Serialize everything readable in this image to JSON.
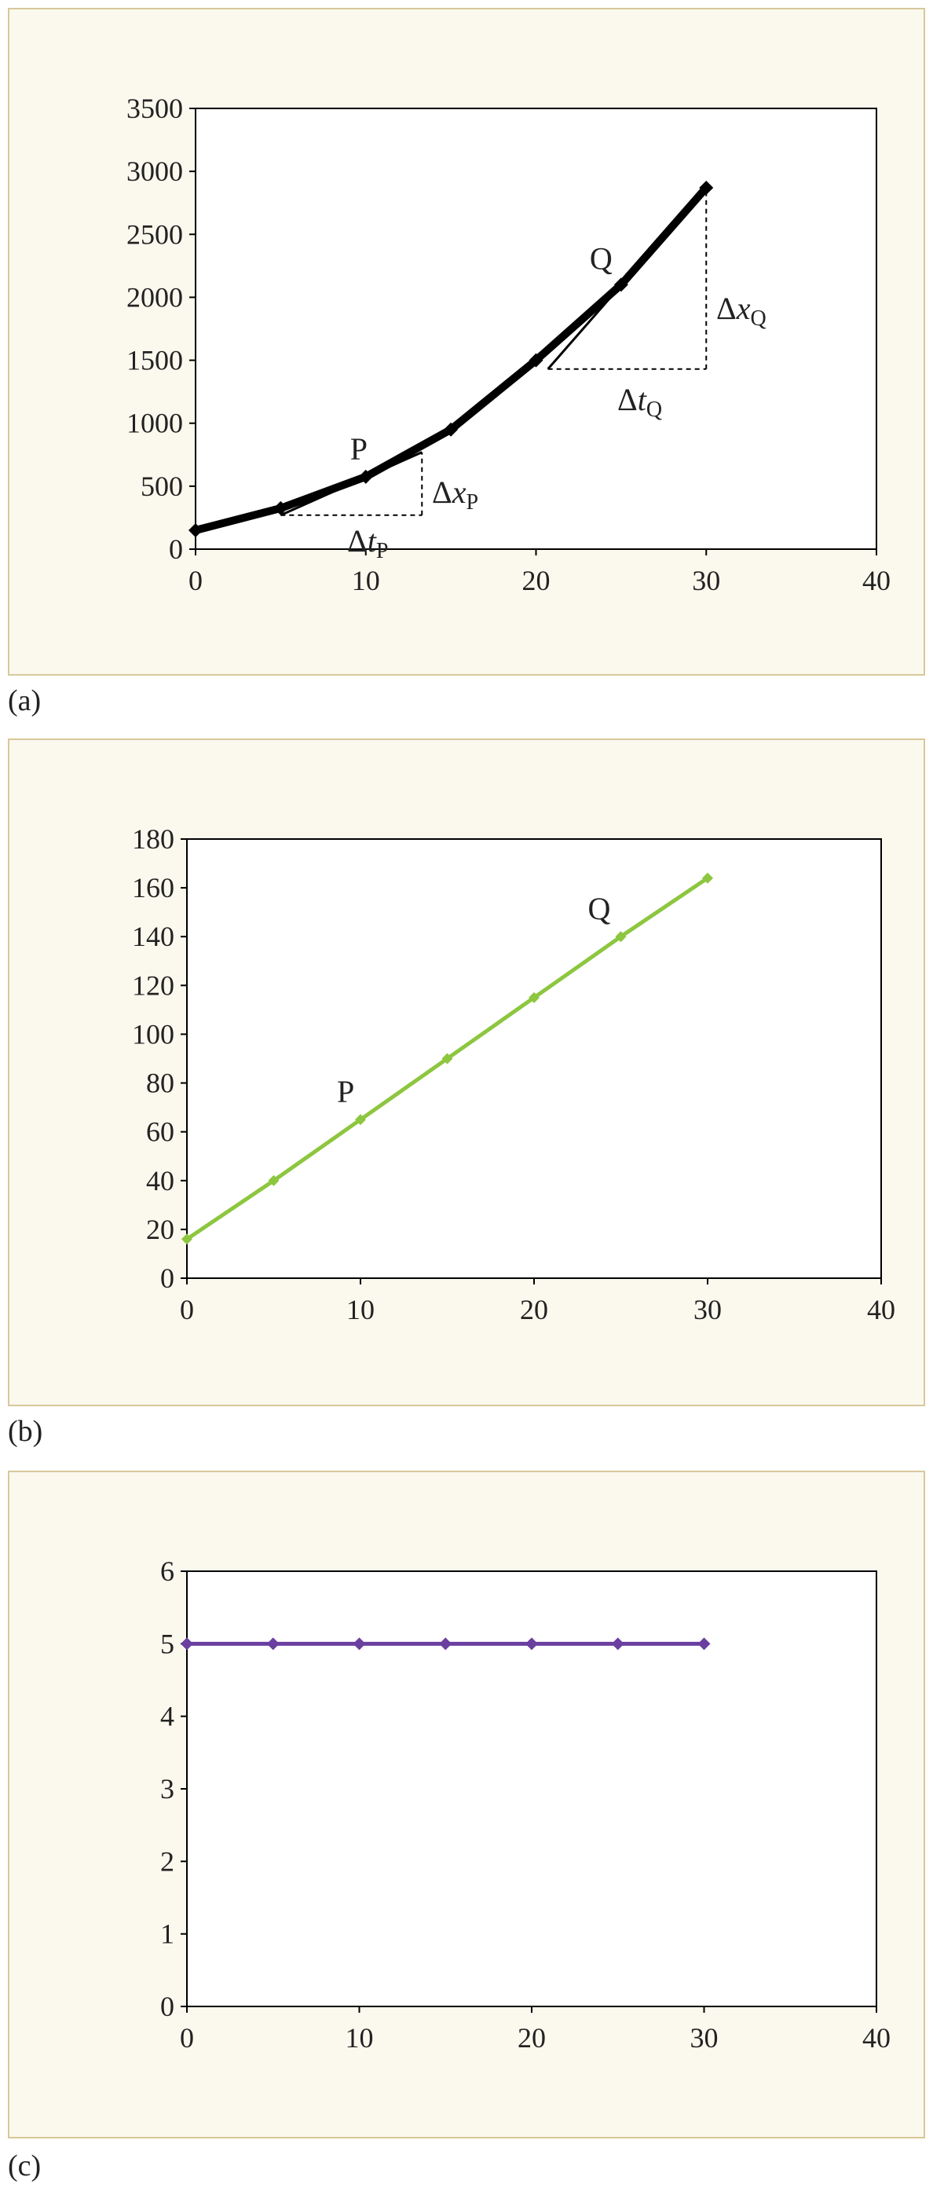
{
  "chart_data": [
    {
      "type": "line",
      "panel_label": "(a)",
      "x": [
        0,
        5,
        10,
        15,
        20,
        25,
        30
      ],
      "series": [
        {
          "values": [
            150,
            325,
            575,
            950,
            1500,
            2100,
            2870
          ],
          "color": "#000000"
        }
      ],
      "xlim": [
        0,
        40
      ],
      "ylim": [
        0,
        3500
      ],
      "xticks": [
        0,
        10,
        20,
        30,
        40
      ],
      "yticks": [
        0,
        500,
        1000,
        1500,
        2000,
        2500,
        3000,
        3500
      ],
      "grid": false,
      "point_labels": [
        {
          "text": "P",
          "x": 10,
          "y": 575
        },
        {
          "text": "Q",
          "x": 25,
          "y": 2100
        }
      ],
      "tangents": [
        {
          "from": [
            5,
            270
          ],
          "to": [
            13.3,
            770
          ]
        },
        {
          "from": [
            20.7,
            1430
          ],
          "to": [
            30,
            2870
          ]
        }
      ],
      "annotations": {
        "dx_p": {
          "delta": "Δ",
          "var": "x",
          "sub": "P"
        },
        "dt_p": {
          "delta": "Δ",
          "var": "t",
          "sub": "P"
        },
        "dx_q": {
          "delta": "Δ",
          "var": "x",
          "sub": "Q"
        },
        "dt_q": {
          "delta": "Δ",
          "var": "t",
          "sub": "Q"
        }
      }
    },
    {
      "type": "line",
      "panel_label": "(b)",
      "x": [
        0,
        5,
        10,
        15,
        20,
        25,
        30
      ],
      "series": [
        {
          "values": [
            16,
            40,
            65,
            90,
            115,
            140,
            164
          ],
          "color": "#8dc63f"
        }
      ],
      "xlim": [
        0,
        40
      ],
      "ylim": [
        0,
        180
      ],
      "xticks": [
        0,
        10,
        20,
        30,
        40
      ],
      "yticks": [
        0,
        20,
        40,
        60,
        80,
        100,
        120,
        140,
        160,
        180
      ],
      "grid": false,
      "point_labels": [
        {
          "text": "P",
          "x": 10,
          "y": 65
        },
        {
          "text": "Q",
          "x": 25,
          "y": 140
        }
      ]
    },
    {
      "type": "line",
      "panel_label": "(c)",
      "x": [
        0,
        5,
        10,
        15,
        20,
        25,
        30
      ],
      "series": [
        {
          "values": [
            5,
            5,
            5,
            5,
            5,
            5,
            5
          ],
          "color": "#6a3fa0"
        }
      ],
      "xlim": [
        0,
        40
      ],
      "ylim": [
        0,
        6
      ],
      "xticks": [
        0,
        10,
        20,
        30,
        40
      ],
      "yticks": [
        0,
        1,
        2,
        3,
        4,
        5,
        6
      ],
      "grid": false,
      "point_labels": []
    }
  ]
}
